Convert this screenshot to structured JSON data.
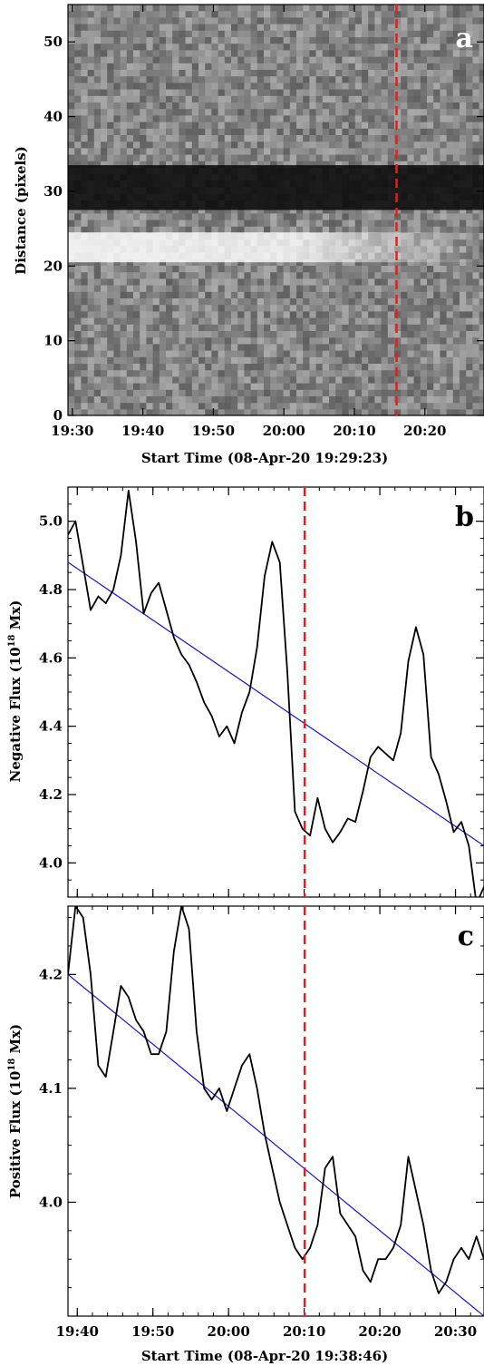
{
  "chart_data": [
    {
      "panel": "a",
      "type": "heatmap",
      "panel_label": "a",
      "xlabel": "Start Time (08-Apr-20 19:29:23)",
      "ylabel": "Distance (pixels)",
      "x_ticks": [
        "19:30",
        "19:40",
        "19:50",
        "20:00",
        "20:10",
        "20:20"
      ],
      "x_tick_minutes": [
        0.62,
        10.62,
        20.62,
        30.62,
        40.62,
        50.62
      ],
      "xlim_minutes": [
        0,
        59
      ],
      "y_ticks": [
        0,
        10,
        20,
        30,
        40,
        50
      ],
      "ylim": [
        0,
        55
      ],
      "dark_band_distance": [
        27.5,
        33.5
      ],
      "bright_band_distance": [
        20.5,
        24.5
      ],
      "bright_band_time_range": [
        "19:30",
        "20:05"
      ],
      "marker_time": "20:16",
      "marker_minutes": 46.6,
      "marker_color": "#e02020"
    },
    {
      "panel": "b",
      "type": "line",
      "panel_label": "b",
      "xlabel": "",
      "ylabel": "Negative Flux (10^18 Mx)",
      "y_ticks": [
        4.0,
        4.2,
        4.4,
        4.6,
        4.8,
        5.0
      ],
      "ylim": [
        3.9,
        5.1
      ],
      "xlim_minutes": [
        0,
        55
      ],
      "x_tick_minutes": [
        1.23,
        11.23,
        21.23,
        31.23,
        41.23,
        51.23
      ],
      "series": [
        {
          "x": [
            0,
            1,
            2,
            3,
            4,
            5,
            6,
            7,
            8,
            9,
            10,
            11,
            12,
            13,
            14,
            15,
            16,
            17,
            18,
            19,
            20,
            21,
            22,
            23,
            24,
            25,
            26,
            27,
            28,
            29,
            30,
            31,
            32,
            33,
            34,
            35,
            36,
            37,
            38,
            39,
            40,
            41,
            42,
            43,
            44,
            45,
            46,
            47,
            48,
            49,
            50,
            51,
            52,
            53,
            54,
            55
          ],
          "values": [
            4.96,
            5.0,
            4.87,
            4.74,
            4.78,
            4.76,
            4.8,
            4.9,
            5.09,
            4.94,
            4.73,
            4.79,
            4.82,
            4.74,
            4.66,
            4.61,
            4.58,
            4.53,
            4.47,
            4.43,
            4.37,
            4.4,
            4.35,
            4.44,
            4.5,
            4.63,
            4.84,
            4.94,
            4.88,
            4.56,
            4.15,
            4.1,
            4.08,
            4.19,
            4.1,
            4.06,
            4.09,
            4.13,
            4.12,
            4.21,
            4.31,
            4.34,
            4.32,
            4.3,
            4.38,
            4.59,
            4.69,
            4.61,
            4.31,
            4.26,
            4.18,
            4.09,
            4.12,
            4.05,
            3.88,
            3.93
          ],
          "color": "#000000"
        },
        {
          "x": [
            0,
            55
          ],
          "values": [
            4.88,
            4.05
          ],
          "color": "#1515dd"
        }
      ],
      "marker_minutes": 31.3,
      "marker_color": "#e02020"
    },
    {
      "panel": "c",
      "type": "line",
      "panel_label": "c",
      "xlabel": "Start Time (08-Apr-20 19:38:46)",
      "ylabel": "Positive Flux (10^18  Mx)",
      "x_ticks": [
        "19:40",
        "19:50",
        "20:00",
        "20:10",
        "20:20",
        "20:30"
      ],
      "x_tick_minutes": [
        1.23,
        11.23,
        21.23,
        31.23,
        41.23,
        51.23
      ],
      "xlim_minutes": [
        0,
        55
      ],
      "y_ticks": [
        4.0,
        4.1,
        4.2
      ],
      "ylim": [
        3.9,
        4.26
      ],
      "series": [
        {
          "x": [
            0,
            1,
            2,
            3,
            4,
            5,
            6,
            7,
            8,
            9,
            10,
            11,
            12,
            13,
            14,
            15,
            16,
            17,
            18,
            19,
            20,
            21,
            22,
            23,
            24,
            25,
            26,
            27,
            28,
            29,
            30,
            31,
            32,
            33,
            34,
            35,
            36,
            37,
            38,
            39,
            40,
            41,
            42,
            43,
            44,
            45,
            46,
            47,
            48,
            49,
            50,
            51,
            52,
            53,
            54,
            55
          ],
          "values": [
            4.2,
            4.26,
            4.25,
            4.2,
            4.12,
            4.11,
            4.15,
            4.19,
            4.18,
            4.16,
            4.15,
            4.13,
            4.13,
            4.15,
            4.22,
            4.26,
            4.24,
            4.15,
            4.1,
            4.09,
            4.1,
            4.08,
            4.1,
            4.12,
            4.13,
            4.1,
            4.06,
            4.03,
            4.0,
            3.98,
            3.96,
            3.95,
            3.96,
            3.98,
            4.03,
            4.04,
            3.99,
            3.98,
            3.97,
            3.94,
            3.93,
            3.95,
            3.95,
            3.96,
            3.98,
            4.04,
            4.01,
            3.98,
            3.94,
            3.92,
            3.93,
            3.95,
            3.96,
            3.95,
            3.97,
            3.95
          ],
          "color": "#000000"
        },
        {
          "x": [
            0,
            55
          ],
          "values": [
            4.2,
            3.9
          ],
          "color": "#1515dd"
        }
      ],
      "marker_minutes": 31.3,
      "marker_color": "#e02020"
    }
  ]
}
